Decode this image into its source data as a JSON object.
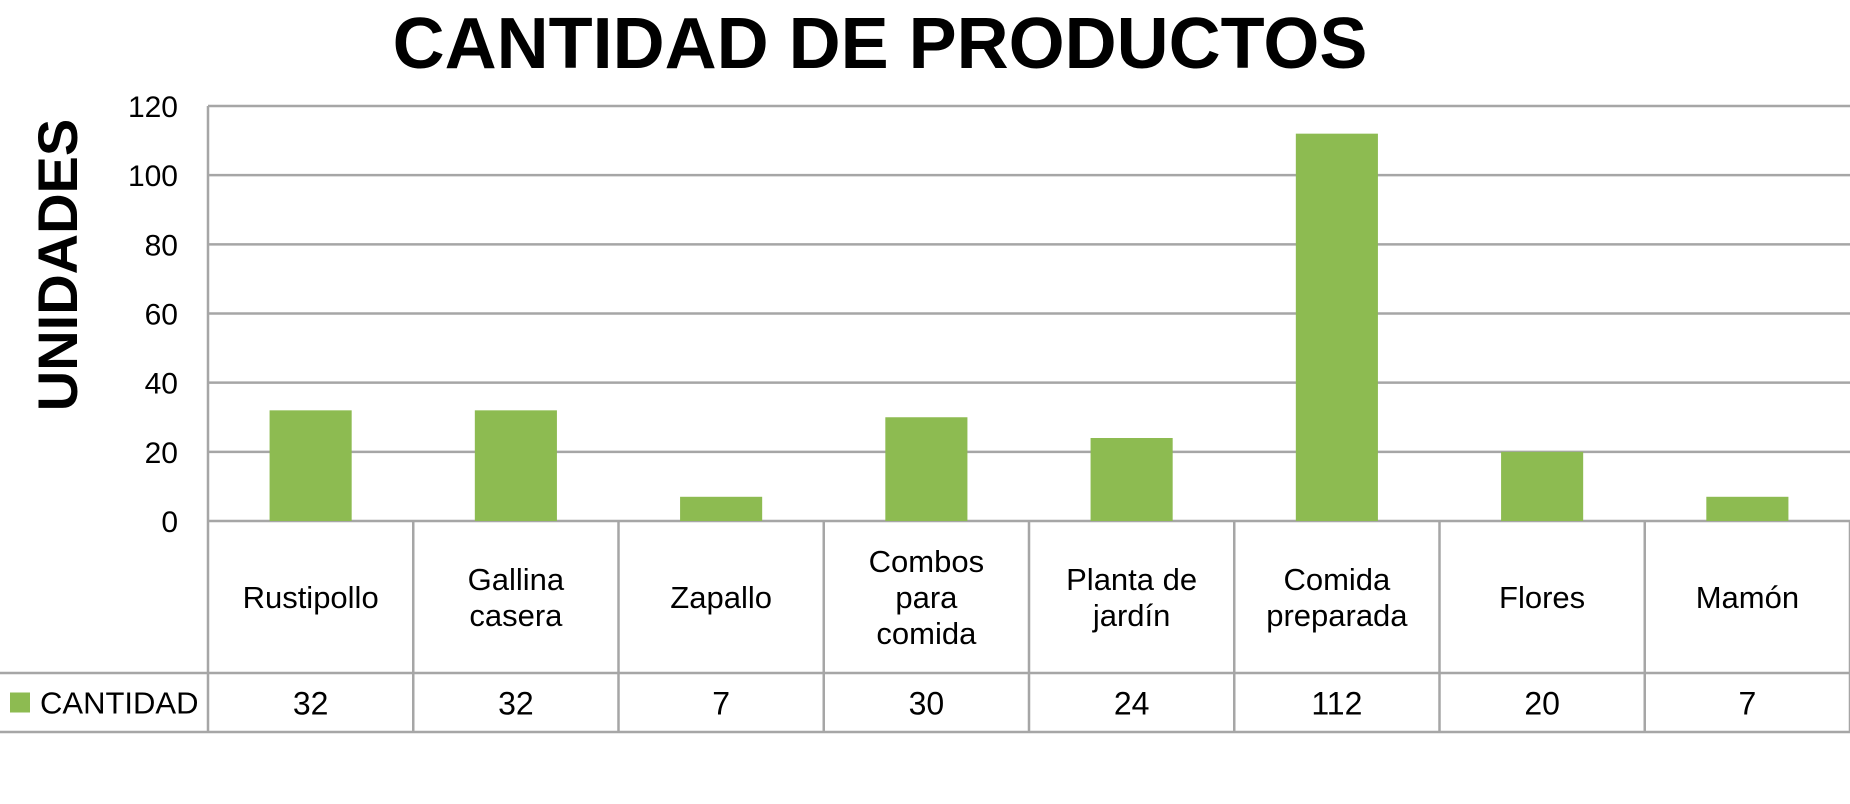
{
  "chart_data": {
    "type": "bar",
    "title": "CANTIDAD DE PRODUCTOS",
    "xlabel": "",
    "ylabel": "UNIDADES",
    "ylim": [
      0,
      120
    ],
    "yticks": [
      0,
      20,
      40,
      60,
      80,
      100,
      120
    ],
    "grid": true,
    "legend": "data-table-left",
    "categories": [
      [
        "Rustipollo"
      ],
      [
        "Gallina",
        "casera"
      ],
      [
        "Zapallo"
      ],
      [
        "Combos",
        "para",
        "comida"
      ],
      [
        "Planta de",
        "jardín"
      ],
      [
        "Comida",
        "preparada"
      ],
      [
        "Flores"
      ],
      [
        "Mamón"
      ]
    ],
    "series": [
      {
        "name": "CANTIDAD",
        "values": [
          32,
          32,
          7,
          30,
          24,
          112,
          20,
          7
        ],
        "color": "#8dbb51"
      }
    ],
    "data_table": true
  }
}
